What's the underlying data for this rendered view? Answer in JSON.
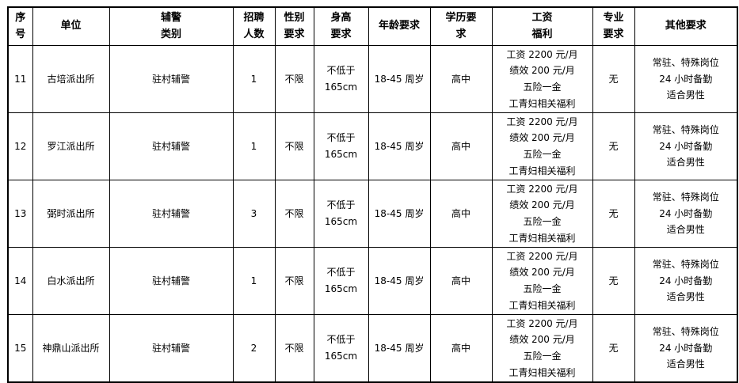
{
  "table": {
    "columns": [
      {
        "key": "serial",
        "label": "序\n号"
      },
      {
        "key": "unit",
        "label": "单位"
      },
      {
        "key": "category",
        "label": "辅警\n类别"
      },
      {
        "key": "headcount",
        "label": "招聘\n人数"
      },
      {
        "key": "gender",
        "label": "性别\n要求"
      },
      {
        "key": "height",
        "label": "身高\n要求"
      },
      {
        "key": "age",
        "label": "年龄要求"
      },
      {
        "key": "education",
        "label": "学历要\n求"
      },
      {
        "key": "salary",
        "label": "工资\n福利"
      },
      {
        "key": "major",
        "label": "专业\n要求"
      },
      {
        "key": "other",
        "label": "其他要求"
      }
    ],
    "rows": [
      {
        "cells": [
          "11",
          "古培派出所",
          "驻村辅警",
          "1",
          "不限",
          "不低于\n165cm",
          "18-45 周岁",
          "高中",
          "工资 2200 元/月\n绩效 200 元/月\n五险一金\n工青妇相关福利",
          "无",
          "常驻、特殊岗位\n24 小时备勤\n适合男性"
        ]
      },
      {
        "cells": [
          "12",
          "罗江派出所",
          "驻村辅警",
          "1",
          "不限",
          "不低于\n165cm",
          "18-45 周岁",
          "高中",
          "工资 2200 元/月\n绩效 200 元/月\n五险一金\n工青妇相关福利",
          "无",
          "常驻、特殊岗位\n24 小时备勤\n适合男性"
        ]
      },
      {
        "cells": [
          "13",
          "弼时派出所",
          "驻村辅警",
          "3",
          "不限",
          "不低于\n165cm",
          "18-45 周岁",
          "高中",
          "工资 2200 元/月\n绩效 200 元/月\n五险一金\n工青妇相关福利",
          "无",
          "常驻、特殊岗位\n24 小时备勤\n适合男性"
        ]
      },
      {
        "cells": [
          "14",
          "白水派出所",
          "驻村辅警",
          "1",
          "不限",
          "不低于\n165cm",
          "18-45 周岁",
          "高中",
          "工资 2200 元/月\n绩效 200 元/月\n五险一金\n工青妇相关福利",
          "无",
          "常驻、特殊岗位\n24 小时备勤\n适合男性"
        ]
      },
      {
        "cells": [
          "15",
          "神鼎山派出所",
          "驻村辅警",
          "2",
          "不限",
          "不低于\n165cm",
          "18-45 周岁",
          "高中",
          "工资 2200 元/月\n绩效 200 元/月\n五险一金\n工青妇相关福利",
          "无",
          "常驻、特殊岗位\n24 小时备勤\n适合男性"
        ]
      }
    ]
  },
  "colors": {
    "border": "#000000",
    "background": "#ffffff",
    "text": "#000000"
  }
}
